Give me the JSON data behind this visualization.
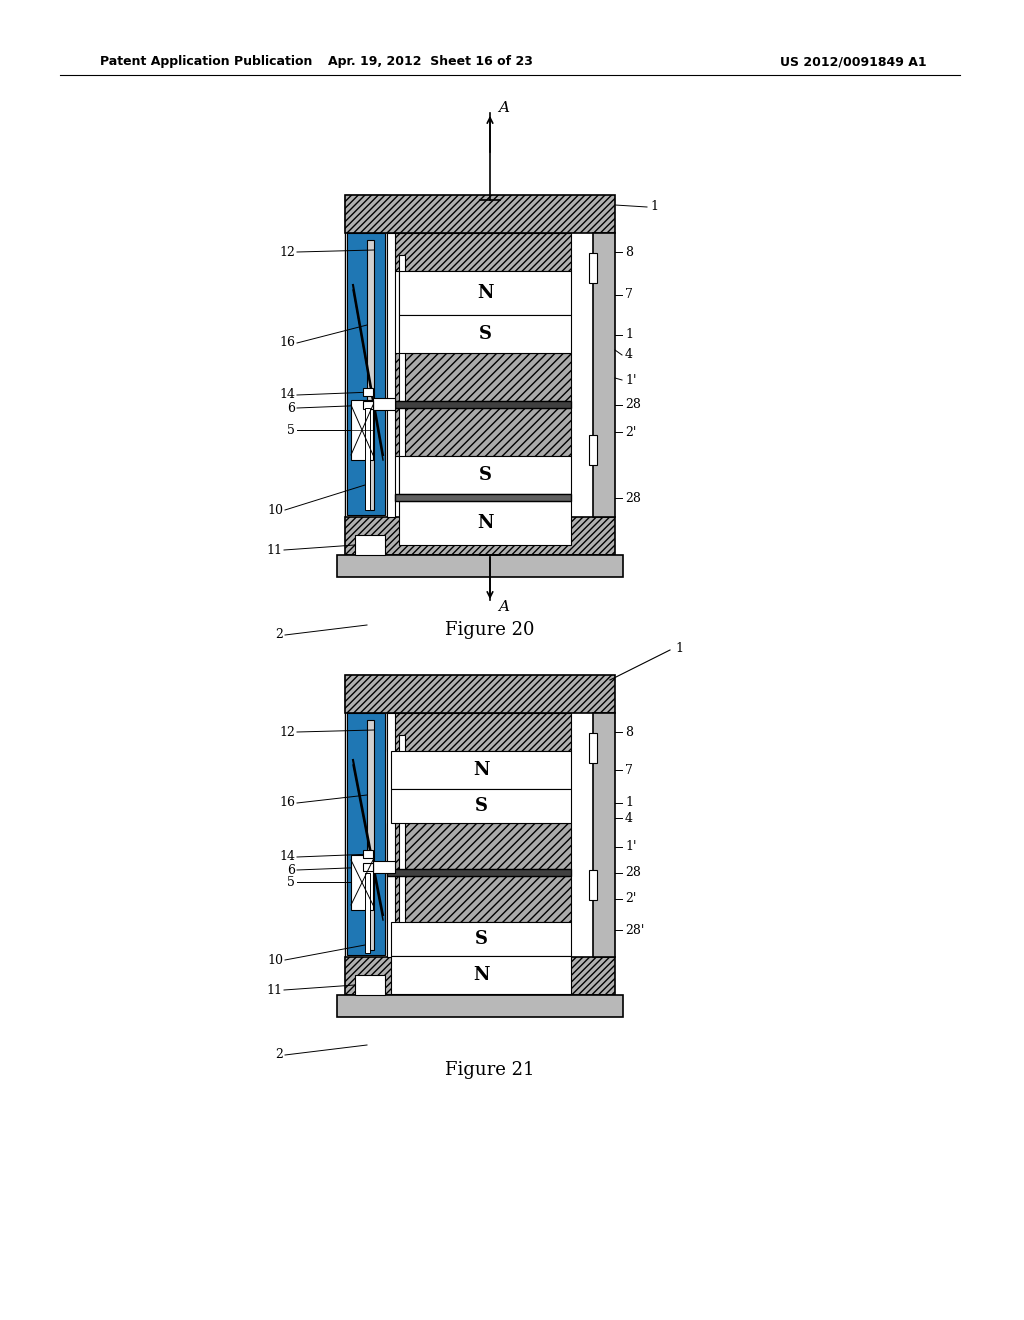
{
  "page_header_left": "Patent Application Publication",
  "page_header_mid": "Apr. 19, 2012  Sheet 16 of 23",
  "page_header_right": "US 2012/0091849 A1",
  "fig20_caption": "Figure 20",
  "fig21_caption": "Figure 21",
  "bg": "#ffffff"
}
